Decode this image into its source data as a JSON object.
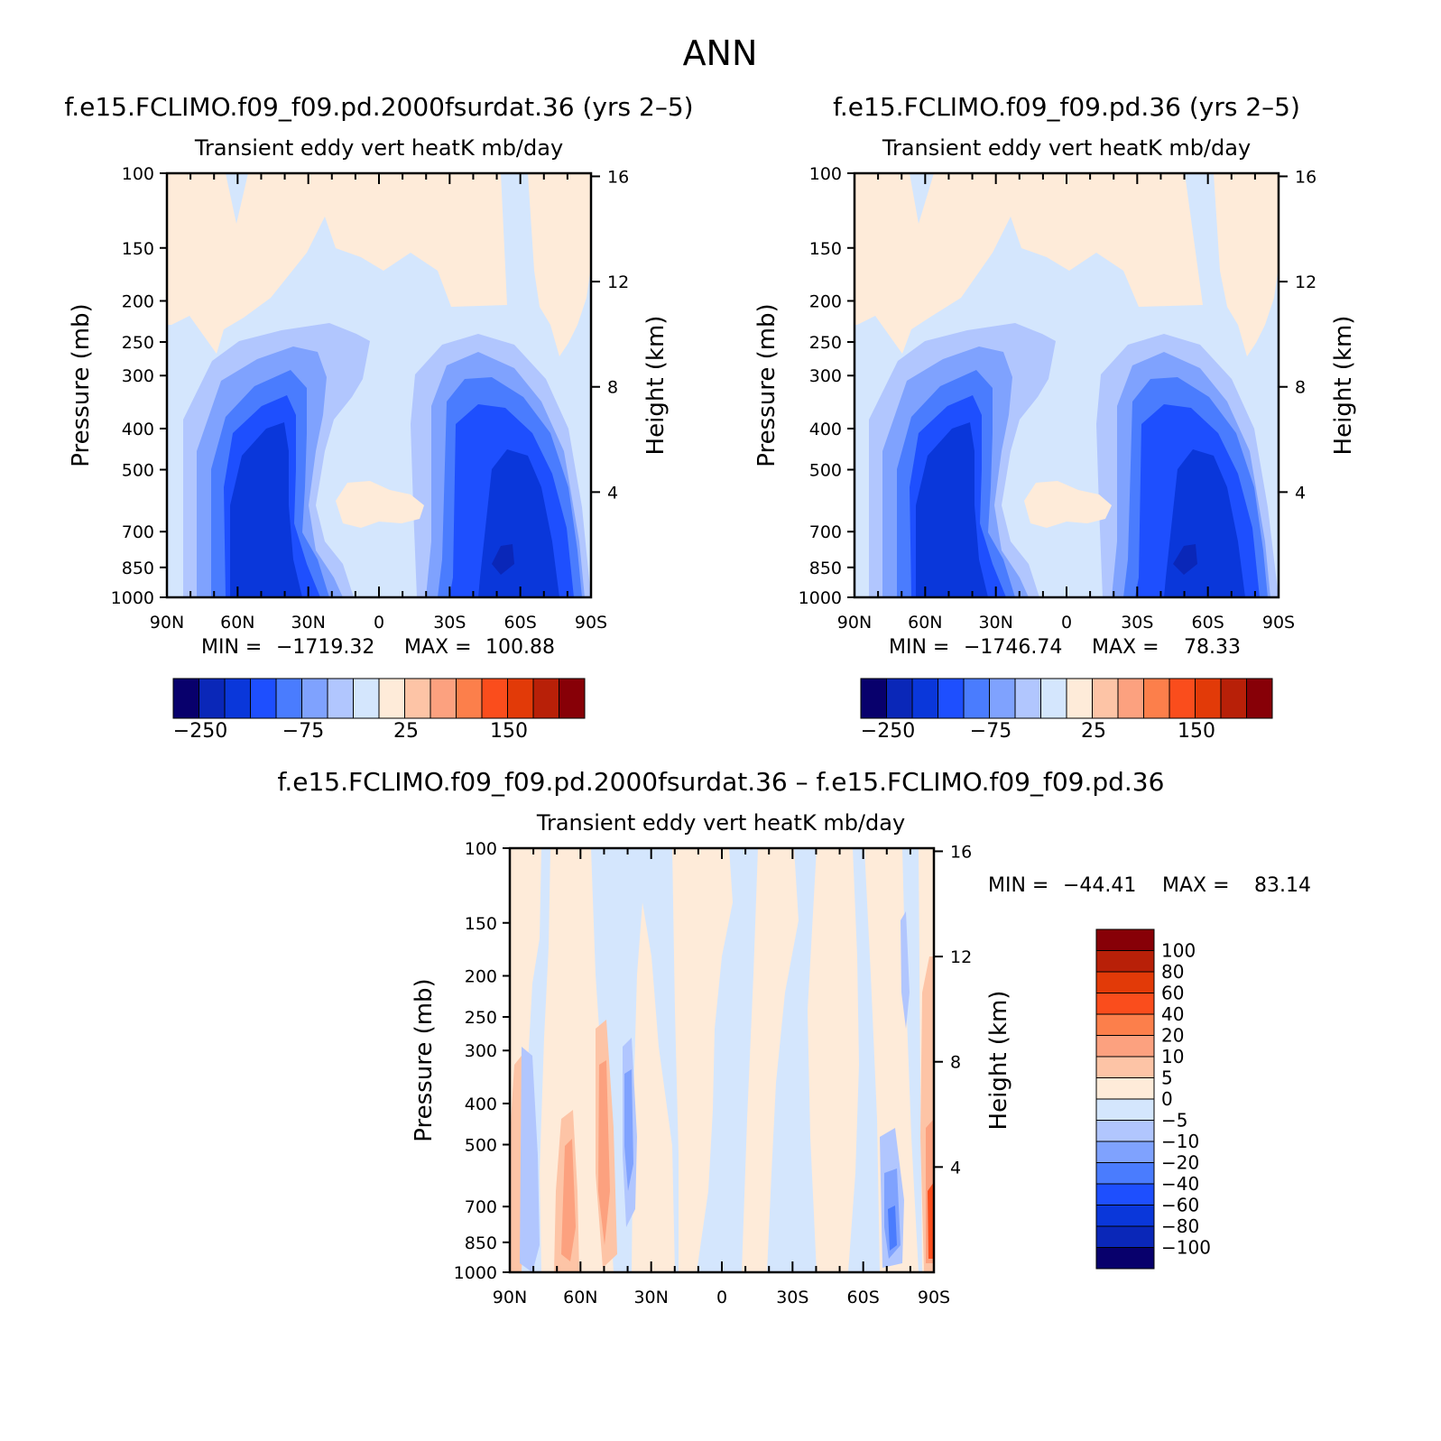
{
  "figure": {
    "title": "ANN"
  },
  "colors": {
    "abs_levels": [
      "#08006c",
      "#0a27b8",
      "#0a37da",
      "#1e4ffe",
      "#4a7cfe",
      "#7fa2fe",
      "#b1c6fe",
      "#d4e6fd",
      "#feebd9",
      "#fdc4a6",
      "#fca17f",
      "#fc7f4b",
      "#fa4d1c",
      "#e23a08",
      "#b82008",
      "#870007"
    ],
    "diff_levels": [
      "#08006c",
      "#0a27b8",
      "#0a37da",
      "#1e4ffe",
      "#4a7cfe",
      "#7fa2fe",
      "#b1c6fe",
      "#d4e6fd",
      "#feebd9",
      "#fdc4a6",
      "#fca17f",
      "#fc7f4b",
      "#fa4d1c",
      "#e23a08",
      "#b82008",
      "#870007"
    ]
  },
  "chart_data": [
    {
      "type": "heatmap",
      "title": "f.e15.FCLIMO.f09_f09.pd.2000fsurdat.36 (yrs 2–5)",
      "subtitle": "Transient eddy vert heatK mb/day",
      "ylabel": "Pressure (mb)",
      "ylabel_right": "Height (km)",
      "x_ticks": [
        "90N",
        "60N",
        "30N",
        "0",
        "30S",
        "60S",
        "90S"
      ],
      "y_ticks": [
        "100",
        "150",
        "200",
        "250",
        "300",
        "400",
        "500",
        "700",
        "850",
        "1000"
      ],
      "y_ticks_right": [
        "16",
        "12",
        "8",
        "4"
      ],
      "xlim": [
        90,
        -90
      ],
      "ylim_mb": [
        1000,
        100
      ],
      "stats": {
        "min_label": "MIN =",
        "min": "−1719.32",
        "max_label": "MAX =",
        "max": "100.88"
      },
      "colorbar_labels": [
        "−250",
        "−75",
        "25",
        "150"
      ]
    },
    {
      "type": "heatmap",
      "title": "f.e15.FCLIMO.f09_f09.pd.36 (yrs 2–5)",
      "subtitle": "Transient eddy vert heatK mb/day",
      "ylabel": "Pressure (mb)",
      "ylabel_right": "Height (km)",
      "x_ticks": [
        "90N",
        "60N",
        "30N",
        "0",
        "30S",
        "60S",
        "90S"
      ],
      "y_ticks": [
        "100",
        "150",
        "200",
        "250",
        "300",
        "400",
        "500",
        "700",
        "850",
        "1000"
      ],
      "y_ticks_right": [
        "16",
        "12",
        "8",
        "4"
      ],
      "xlim": [
        90,
        -90
      ],
      "ylim_mb": [
        1000,
        100
      ],
      "stats": {
        "min_label": "MIN =",
        "min": "−1746.74",
        "max_label": "MAX =",
        "max": "78.33"
      },
      "colorbar_labels": [
        "−250",
        "−75",
        "25",
        "150"
      ]
    },
    {
      "type": "heatmap",
      "title": "f.e15.FCLIMO.f09_f09.pd.2000fsurdat.36 – f.e15.FCLIMO.f09_f09.pd.36",
      "subtitle": "Transient eddy vert heatK mb/day",
      "ylabel": "Pressure (mb)",
      "ylabel_right": "Height (km)",
      "x_ticks": [
        "90N",
        "60N",
        "30N",
        "0",
        "30S",
        "60S",
        "90S"
      ],
      "y_ticks": [
        "100",
        "150",
        "200",
        "250",
        "300",
        "400",
        "500",
        "700",
        "850",
        "1000"
      ],
      "y_ticks_right": [
        "16",
        "12",
        "8",
        "4"
      ],
      "xlim": [
        90,
        -90
      ],
      "ylim_mb": [
        1000,
        100
      ],
      "stats": {
        "min_label": "MIN =",
        "min": "−44.41",
        "max_label": "MAX =",
        "max": "83.14"
      },
      "colorbar_labels": [
        "100",
        "80",
        "60",
        "40",
        "20",
        "10",
        "5",
        "0",
        "−5",
        "−10",
        "−20",
        "−40",
        "−60",
        "−80",
        "−100"
      ]
    }
  ]
}
